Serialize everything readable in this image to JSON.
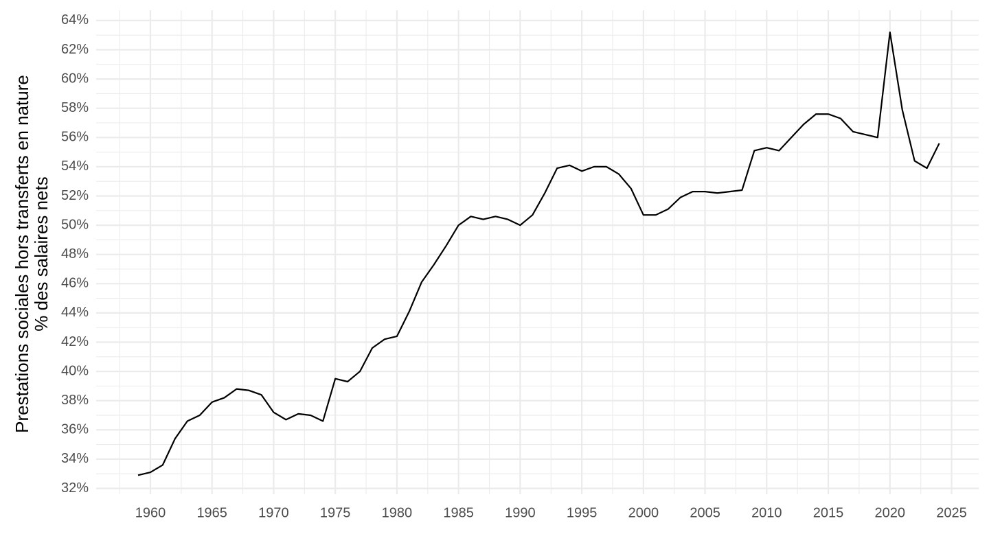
{
  "chart_data": {
    "type": "line",
    "ylabel": [
      "Prestations sociales hors transferts en nature",
      "% des salaires nets"
    ],
    "x": [
      1959,
      1960,
      1961,
      1962,
      1963,
      1964,
      1965,
      1966,
      1967,
      1968,
      1969,
      1970,
      1971,
      1972,
      1973,
      1974,
      1975,
      1976,
      1977,
      1978,
      1979,
      1980,
      1981,
      1982,
      1983,
      1984,
      1985,
      1986,
      1987,
      1988,
      1989,
      1990,
      1991,
      1992,
      1993,
      1994,
      1995,
      1996,
      1997,
      1998,
      1999,
      2000,
      2001,
      2002,
      2003,
      2004,
      2005,
      2006,
      2007,
      2008,
      2009,
      2010,
      2011,
      2012,
      2013,
      2014,
      2015,
      2016,
      2017,
      2018,
      2019,
      2020,
      2021,
      2022,
      2023,
      2024
    ],
    "series": [
      {
        "color": "#000000",
        "values": [
          32.9,
          33.1,
          33.6,
          35.4,
          36.6,
          37.0,
          37.9,
          38.2,
          38.8,
          38.7,
          38.4,
          37.2,
          36.7,
          37.1,
          37.0,
          36.6,
          39.5,
          39.3,
          40.0,
          41.6,
          42.2,
          42.4,
          44.1,
          46.1,
          47.3,
          48.6,
          50.0,
          50.6,
          50.4,
          50.6,
          50.4,
          50.0,
          50.7,
          52.2,
          53.9,
          54.1,
          53.7,
          54.0,
          54.0,
          53.5,
          52.5,
          50.7,
          50.7,
          51.1,
          51.9,
          52.3,
          52.3,
          52.2,
          52.3,
          52.4,
          55.1,
          55.3,
          55.1,
          56.0,
          56.9,
          57.6,
          57.6,
          57.3,
          56.4,
          56.2,
          56.0,
          63.2,
          57.9,
          54.4,
          53.9,
          55.6
        ]
      }
    ],
    "xlim": [
      1955.6,
      2027.2
    ],
    "ylim": [
      31.6,
      64.7
    ],
    "xticks": [
      1960,
      1965,
      1970,
      1975,
      1980,
      1985,
      1990,
      1995,
      2000,
      2005,
      2010,
      2015,
      2020,
      2025
    ],
    "minor_xticks": [
      1957.5,
      1962.5,
      1967.5,
      1972.5,
      1977.5,
      1982.5,
      1987.5,
      1992.5,
      1997.5,
      2002.5,
      2007.5,
      2012.5,
      2017.5,
      2022.5
    ],
    "yticks": [
      {
        "value": 32,
        "label": "32%"
      },
      {
        "value": 34,
        "label": "34%"
      },
      {
        "value": 36,
        "label": "36%"
      },
      {
        "value": 38,
        "label": "38%"
      },
      {
        "value": 40,
        "label": "40%"
      },
      {
        "value": 42,
        "label": "42%"
      },
      {
        "value": 44,
        "label": "44%"
      },
      {
        "value": 46,
        "label": "46%"
      },
      {
        "value": 48,
        "label": "48%"
      },
      {
        "value": 50,
        "label": "50%"
      },
      {
        "value": 52,
        "label": "52%"
      },
      {
        "value": 54,
        "label": "54%"
      },
      {
        "value": 56,
        "label": "56%"
      },
      {
        "value": 58,
        "label": "58%"
      },
      {
        "value": 60,
        "label": "60%"
      },
      {
        "value": 62,
        "label": "62%"
      },
      {
        "value": 64,
        "label": "64%"
      }
    ],
    "minor_yticks": [
      33,
      35,
      37,
      39,
      41,
      43,
      45,
      47,
      49,
      51,
      53,
      55,
      57,
      59,
      61,
      63
    ],
    "grid": true
  }
}
